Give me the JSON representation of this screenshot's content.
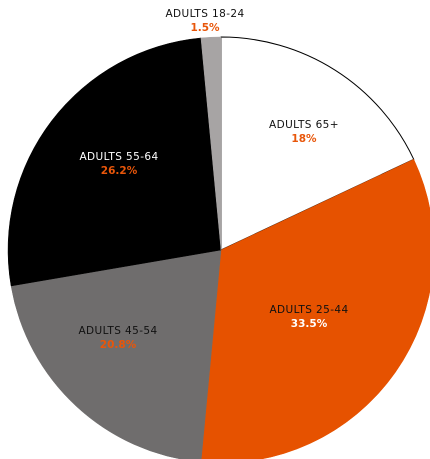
{
  "chart_data": {
    "type": "pie",
    "title": "",
    "slices": [
      {
        "label": "ADULTS 65+",
        "value": 18,
        "display": "18%",
        "color": "#ffffff",
        "label_color": "#111111",
        "value_color": "#e8560a"
      },
      {
        "label": "ADULTS 25-44",
        "value": 33.5,
        "display": "33.5%",
        "color": "#e65200",
        "label_color": "#111111",
        "value_color": "#ffffff"
      },
      {
        "label": "ADULTS 45-54",
        "value": 20.8,
        "display": "20.8%",
        "color": "#6f6d6d",
        "label_color": "#111111",
        "value_color": "#e8560a"
      },
      {
        "label": "ADULTS 55-64",
        "value": 26.2,
        "display": "26.2%",
        "color": "#000000",
        "label_color": "#ffffff",
        "value_color": "#e8560a"
      },
      {
        "label": "ADULTS 18-24",
        "value": 1.5,
        "display": "1.5%",
        "color": "#a7a4a4",
        "label_color": "#111111",
        "value_color": "#e8560a"
      }
    ]
  }
}
